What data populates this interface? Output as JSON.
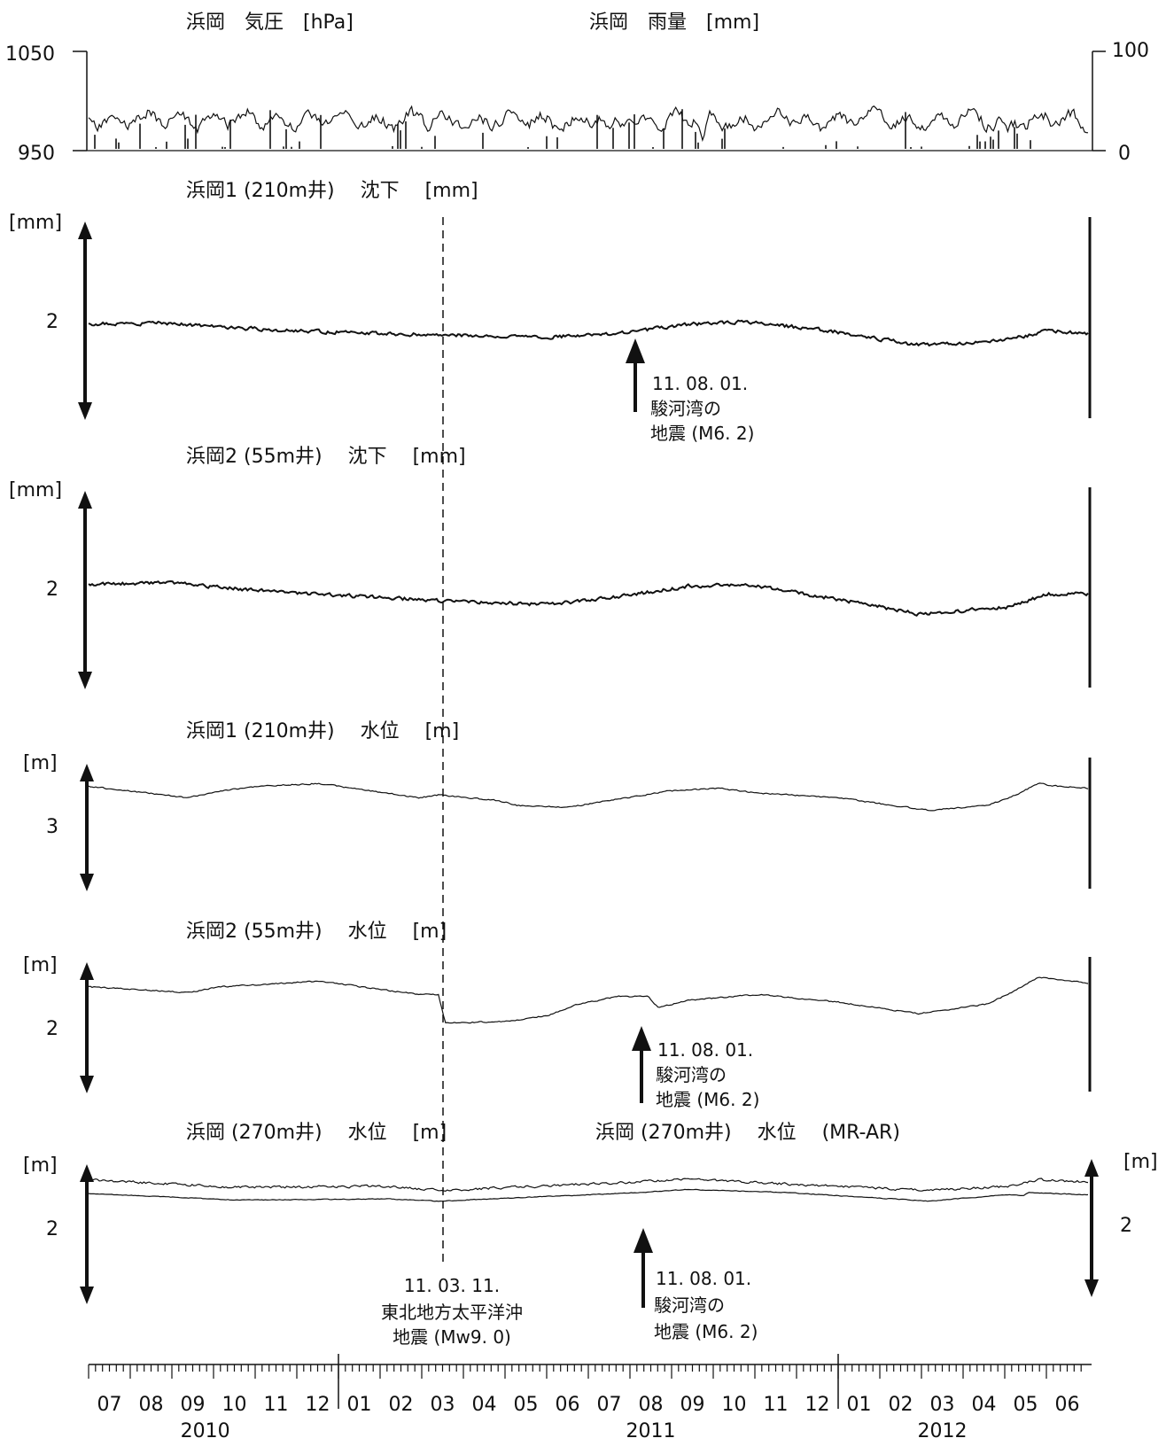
{
  "chart_data": [
    {
      "type": "line",
      "panel": "pressure-rain",
      "title_left": "浜岡　気圧　[hPa]",
      "title_right": "浜岡　雨量　[mm]",
      "y_left": {
        "ticks": [
          "1050",
          "950"
        ],
        "ylim": [
          950,
          1050
        ]
      },
      "y_right": {
        "ticks": [
          "100",
          "0"
        ],
        "ylim": [
          0,
          100
        ]
      },
      "series": [
        {
          "name": "気圧",
          "seed": 11,
          "base": 0.7,
          "amp": 0.06,
          "noise": 0.05,
          "dips": [
            [
              0.34,
              0.15
            ],
            [
              0.52,
              0.2
            ],
            [
              0.615,
              0.3
            ],
            [
              0.92,
              0.1
            ]
          ]
        },
        {
          "name": "雨量",
          "style": "bars",
          "seed": 29
        }
      ]
    },
    {
      "type": "line",
      "panel": "subsidence-1",
      "title": "浜岡1 (210m井)　 沈下　 [mm]",
      "unit_label": "[mm]",
      "scale_label": "2",
      "series": [
        {
          "name": "沈下",
          "seed": 3,
          "points": [
            [
              0,
              0.5
            ],
            [
              0.07,
              0.49
            ],
            [
              0.2,
              0.55
            ],
            [
              0.35,
              0.58
            ],
            [
              0.45,
              0.6
            ],
            [
              0.53,
              0.57
            ],
            [
              0.6,
              0.5
            ],
            [
              0.66,
              0.48
            ],
            [
              0.75,
              0.56
            ],
            [
              0.83,
              0.66
            ],
            [
              0.92,
              0.62
            ],
            [
              0.96,
              0.55
            ],
            [
              1.0,
              0.57
            ]
          ],
          "noise": 0.012
        }
      ]
    },
    {
      "type": "line",
      "panel": "subsidence-2",
      "title": "浜岡2 (55m井)　 沈下　 [mm]",
      "unit_label": "[mm]",
      "scale_label": "2",
      "series": [
        {
          "name": "沈下",
          "seed": 5,
          "points": [
            [
              0,
              0.46
            ],
            [
              0.07,
              0.44
            ],
            [
              0.2,
              0.52
            ],
            [
              0.35,
              0.58
            ],
            [
              0.46,
              0.61
            ],
            [
              0.53,
              0.55
            ],
            [
              0.6,
              0.47
            ],
            [
              0.66,
              0.46
            ],
            [
              0.75,
              0.57
            ],
            [
              0.83,
              0.68
            ],
            [
              0.92,
              0.63
            ],
            [
              0.96,
              0.53
            ],
            [
              1.0,
              0.53
            ]
          ],
          "noise": 0.012
        }
      ]
    },
    {
      "type": "line",
      "panel": "water-1",
      "title": "浜岡1 (210m井)　 水位　 [m]",
      "unit_label": "[m]",
      "scale_label": "3",
      "series": [
        {
          "name": "水位",
          "seed": 7,
          "points": [
            [
              0,
              0.18
            ],
            [
              0.1,
              0.3
            ],
            [
              0.13,
              0.23
            ],
            [
              0.17,
              0.18
            ],
            [
              0.23,
              0.15
            ],
            [
              0.33,
              0.3
            ],
            [
              0.35,
              0.27
            ],
            [
              0.41,
              0.33
            ],
            [
              0.43,
              0.38
            ],
            [
              0.48,
              0.4
            ],
            [
              0.52,
              0.33
            ],
            [
              0.58,
              0.23
            ],
            [
              0.63,
              0.2
            ],
            [
              0.67,
              0.25
            ],
            [
              0.75,
              0.3
            ],
            [
              0.84,
              0.43
            ],
            [
              0.9,
              0.38
            ],
            [
              0.93,
              0.26
            ],
            [
              0.95,
              0.15
            ],
            [
              0.97,
              0.18
            ],
            [
              1.0,
              0.2
            ]
          ],
          "noise": 0.006
        }
      ]
    },
    {
      "type": "line",
      "panel": "water-2",
      "title": "浜岡2 (55m井)　 水位　 [m]",
      "unit_label": "[m]",
      "scale_label": "2",
      "series": [
        {
          "name": "水位",
          "seed": 9,
          "points": [
            [
              0,
              0.22
            ],
            [
              0.1,
              0.28
            ],
            [
              0.13,
              0.22
            ],
            [
              0.17,
              0.2
            ],
            [
              0.23,
              0.16
            ],
            [
              0.33,
              0.3
            ],
            [
              0.35,
              0.3
            ],
            [
              0.357,
              0.6
            ],
            [
              0.42,
              0.58
            ],
            [
              0.46,
              0.52
            ],
            [
              0.49,
              0.4
            ],
            [
              0.53,
              0.32
            ],
            [
              0.56,
              0.32
            ],
            [
              0.57,
              0.44
            ],
            [
              0.6,
              0.36
            ],
            [
              0.67,
              0.3
            ],
            [
              0.75,
              0.38
            ],
            [
              0.83,
              0.5
            ],
            [
              0.9,
              0.4
            ],
            [
              0.93,
              0.24
            ],
            [
              0.95,
              0.12
            ],
            [
              1.0,
              0.18
            ]
          ],
          "noise": 0.006
        }
      ]
    },
    {
      "type": "line",
      "panel": "water-270",
      "title_left": "浜岡 (270m井)　 水位　 [m]",
      "title_right": "浜岡 (270m井)　 水位　 (MR-AR)",
      "unit_label_left": "[m]",
      "unit_label_right": "[m]",
      "scale_label_left": "2",
      "scale_label_right": "2",
      "series": [
        {
          "name": "水位",
          "seed": 13,
          "points": [
            [
              0,
              0.18
            ],
            [
              0.15,
              0.25
            ],
            [
              0.3,
              0.24
            ],
            [
              0.35,
              0.28
            ],
            [
              0.45,
              0.24
            ],
            [
              0.55,
              0.2
            ],
            [
              0.6,
              0.17
            ],
            [
              0.7,
              0.22
            ],
            [
              0.84,
              0.28
            ],
            [
              0.92,
              0.24
            ],
            [
              0.95,
              0.18
            ],
            [
              1.0,
              0.2
            ]
          ],
          "noise": 0.01
        },
        {
          "name": "MR-AR",
          "seed": 17,
          "points": [
            [
              0,
              0.31
            ],
            [
              0.15,
              0.37
            ],
            [
              0.3,
              0.36
            ],
            [
              0.35,
              0.38
            ],
            [
              0.45,
              0.34
            ],
            [
              0.55,
              0.3
            ],
            [
              0.6,
              0.27
            ],
            [
              0.7,
              0.3
            ],
            [
              0.84,
              0.38
            ],
            [
              0.92,
              0.32
            ],
            [
              0.935,
              0.33
            ],
            [
              0.94,
              0.3
            ],
            [
              1.0,
              0.32
            ]
          ],
          "noise": 0.003
        }
      ]
    }
  ],
  "time_axis": {
    "months": [
      "07",
      "08",
      "09",
      "10",
      "11",
      "12",
      "01",
      "02",
      "03",
      "04",
      "05",
      "06",
      "07",
      "08",
      "09",
      "10",
      "11",
      "12",
      "01",
      "02",
      "03",
      "04",
      "05",
      "06"
    ],
    "years": [
      "2010",
      "2011",
      "2012"
    ]
  },
  "events": {
    "tohoku": {
      "line1": "11. 03. 11.",
      "line2": "東北地方太平洋沖",
      "line3": "地震 (Mw9. 0)"
    },
    "suruga": {
      "line1": "11. 08. 01.",
      "line2": "駿河湾の",
      "line3": "地震 (M6. 2)"
    }
  }
}
